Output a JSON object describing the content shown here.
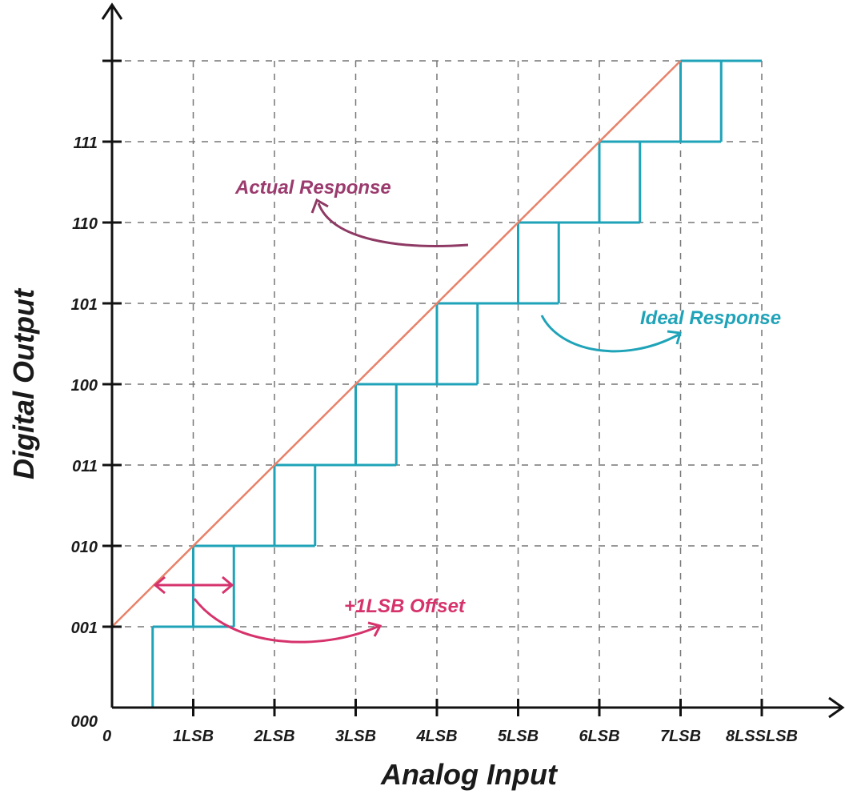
{
  "chart_data": {
    "type": "line",
    "xlabel": "Analog Input",
    "ylabel": "Digital Output",
    "x_ticks": [
      "0",
      "1LSB",
      "2LSB",
      "3LSB",
      "4LSB",
      "5LSB",
      "6LSB",
      "7LSB",
      "8LSSLSB"
    ],
    "y_ticks": [
      "000",
      "001",
      "010",
      "011",
      "100",
      "101",
      "110",
      "111",
      ""
    ],
    "xlim": [
      0,
      9
    ],
    "ylim": [
      0,
      8
    ],
    "grid": "dashed",
    "series": [
      {
        "name": "Actual Response",
        "color": "#e8826a",
        "x": [
          0,
          7
        ],
        "y": [
          1,
          8
        ]
      },
      {
        "name": "Ideal Response",
        "color": "#1fa3b8",
        "steps_x": [
          0.5,
          1.5,
          2.5,
          3.5,
          4.5,
          5.5,
          6.5,
          7.5
        ],
        "levels": [
          0,
          1,
          2,
          3,
          4,
          5,
          6,
          7,
          8
        ]
      }
    ],
    "annotations": [
      {
        "text": "Actual Response",
        "color": "#9b3b6e"
      },
      {
        "text": "Ideal Response",
        "color": "#1fa3b8"
      },
      {
        "text": "+1LSB Offset",
        "color": "#d6336c"
      }
    ]
  }
}
